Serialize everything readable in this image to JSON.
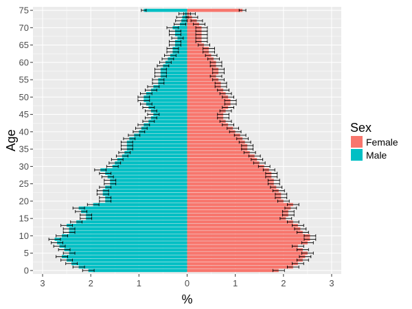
{
  "chart_data": {
    "type": "bar",
    "orientation": "horizontal",
    "subtype": "population-pyramid",
    "xlabel": "%",
    "ylabel": "Age",
    "xlim": [
      -3.2,
      3.2
    ],
    "ylim": [
      -1,
      76
    ],
    "x_ticks": [
      -3,
      -2,
      -1,
      0,
      1,
      2,
      3
    ],
    "x_tick_labels": [
      "3",
      "2",
      "1",
      "0",
      "1",
      "2",
      "3"
    ],
    "y_ticks": [
      0,
      5,
      10,
      15,
      20,
      25,
      30,
      35,
      40,
      45,
      50,
      55,
      60,
      65,
      70,
      75
    ],
    "y_tick_labels": [
      "0",
      "5",
      "10",
      "15",
      "20",
      "25",
      "30",
      "35",
      "40",
      "45",
      "50",
      "55",
      "60",
      "65",
      "70",
      "75"
    ],
    "grid": true,
    "legend": {
      "title": "Sex",
      "position": "right",
      "entries": [
        {
          "label": "Female",
          "color": "#F8766D"
        },
        {
          "label": "Male",
          "color": "#00BFC4"
        }
      ]
    },
    "colors": {
      "Female": "#F8766D",
      "Male": "#00BFC4",
      "panel": "#EBEBEB",
      "grid": "#FFFFFF",
      "errorbar": "#000000"
    },
    "ages": [
      0,
      1,
      2,
      3,
      4,
      5,
      6,
      7,
      8,
      9,
      10,
      11,
      12,
      13,
      14,
      15,
      16,
      17,
      18,
      19,
      20,
      21,
      22,
      23,
      24,
      25,
      26,
      27,
      28,
      29,
      30,
      31,
      32,
      33,
      34,
      35,
      36,
      37,
      38,
      39,
      40,
      41,
      42,
      43,
      44,
      45,
      46,
      47,
      48,
      49,
      50,
      51,
      52,
      53,
      54,
      55,
      56,
      57,
      58,
      59,
      60,
      61,
      62,
      63,
      64,
      65,
      66,
      67,
      68,
      69,
      70,
      71,
      72,
      73,
      74,
      75
    ],
    "series": [
      {
        "name": "Female",
        "values": [
          1.9,
          2.2,
          2.3,
          2.4,
          2.45,
          2.5,
          2.4,
          2.3,
          2.5,
          2.55,
          2.55,
          2.4,
          2.35,
          2.3,
          2.2,
          2.05,
          2.1,
          2.1,
          2.15,
          2.2,
          2.0,
          1.95,
          1.95,
          1.9,
          1.85,
          1.8,
          1.8,
          1.75,
          1.75,
          1.7,
          1.6,
          1.5,
          1.45,
          1.4,
          1.3,
          1.25,
          1.25,
          1.2,
          1.15,
          1.1,
          1.0,
          0.95,
          0.85,
          0.8,
          0.75,
          0.75,
          0.8,
          0.85,
          0.9,
          0.9,
          0.85,
          0.8,
          0.75,
          0.7,
          0.7,
          0.65,
          0.6,
          0.65,
          0.65,
          0.6,
          0.6,
          0.55,
          0.5,
          0.45,
          0.45,
          0.35,
          0.3,
          0.3,
          0.3,
          0.3,
          0.3,
          0.25,
          0.2,
          0.1,
          0.05,
          1.15
        ],
        "error": [
          0.12,
          0.12,
          0.12,
          0.12,
          0.12,
          0.12,
          0.12,
          0.12,
          0.12,
          0.12,
          0.12,
          0.12,
          0.12,
          0.12,
          0.12,
          0.12,
          0.12,
          0.12,
          0.12,
          0.12,
          0.12,
          0.12,
          0.12,
          0.12,
          0.12,
          0.12,
          0.12,
          0.12,
          0.12,
          0.12,
          0.12,
          0.12,
          0.12,
          0.12,
          0.12,
          0.12,
          0.12,
          0.12,
          0.12,
          0.12,
          0.12,
          0.12,
          0.12,
          0.12,
          0.12,
          0.12,
          0.12,
          0.12,
          0.12,
          0.12,
          0.12,
          0.12,
          0.12,
          0.12,
          0.12,
          0.12,
          0.12,
          0.12,
          0.12,
          0.12,
          0.12,
          0.12,
          0.12,
          0.12,
          0.12,
          0.12,
          0.12,
          0.12,
          0.12,
          0.12,
          0.12,
          0.12,
          0.12,
          0.12,
          0.12,
          0.07
        ]
      },
      {
        "name": "Male",
        "values": [
          -2.05,
          -2.25,
          -2.4,
          -2.5,
          -2.6,
          -2.45,
          -2.55,
          -2.65,
          -2.7,
          -2.75,
          -2.6,
          -2.45,
          -2.45,
          -2.5,
          -2.3,
          -2.1,
          -2.1,
          -2.2,
          -2.25,
          -1.95,
          -1.7,
          -1.7,
          -1.75,
          -1.75,
          -1.7,
          -1.6,
          -1.6,
          -1.65,
          -1.7,
          -1.8,
          -1.55,
          -1.5,
          -1.45,
          -1.35,
          -1.3,
          -1.25,
          -1.25,
          -1.25,
          -1.2,
          -1.1,
          -1.0,
          -0.95,
          -0.9,
          -0.8,
          -0.75,
          -0.7,
          -0.75,
          -0.8,
          -0.85,
          -0.9,
          -0.9,
          -0.85,
          -0.75,
          -0.7,
          -0.6,
          -0.6,
          -0.55,
          -0.55,
          -0.55,
          -0.5,
          -0.45,
          -0.4,
          -0.35,
          -0.3,
          -0.3,
          -0.25,
          -0.25,
          -0.2,
          -0.25,
          -0.25,
          -0.3,
          -0.15,
          -0.12,
          -0.1,
          -0.05,
          -0.9
        ]
      }
    ],
    "error_male": [
      0.12,
      0.12,
      0.12,
      0.12,
      0.12,
      0.12,
      0.12,
      0.12,
      0.12,
      0.12,
      0.12,
      0.12,
      0.12,
      0.12,
      0.12,
      0.12,
      0.12,
      0.12,
      0.12,
      0.12,
      0.12,
      0.12,
      0.12,
      0.12,
      0.12,
      0.12,
      0.12,
      0.12,
      0.12,
      0.12,
      0.12,
      0.12,
      0.12,
      0.12,
      0.12,
      0.12,
      0.12,
      0.12,
      0.12,
      0.12,
      0.12,
      0.12,
      0.12,
      0.12,
      0.12,
      0.12,
      0.12,
      0.12,
      0.12,
      0.12,
      0.12,
      0.12,
      0.12,
      0.12,
      0.12,
      0.12,
      0.12,
      0.12,
      0.12,
      0.12,
      0.12,
      0.12,
      0.12,
      0.12,
      0.12,
      0.12,
      0.12,
      0.12,
      0.12,
      0.12,
      0.12,
      0.12,
      0.12,
      0.12,
      0.12,
      0.05
    ]
  }
}
